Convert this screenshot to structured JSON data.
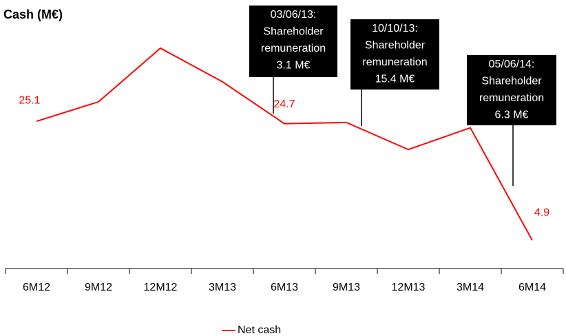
{
  "chart_data": {
    "type": "line",
    "title": "Cash (M€)",
    "categories": [
      "6M12",
      "9M12",
      "12M12",
      "3M13",
      "6M13",
      "9M13",
      "12M13",
      "3M14",
      "6M14"
    ],
    "series": [
      {
        "name": "Net cash",
        "color": "#ff0000",
        "values": [
          25.1,
          28.4,
          37.5,
          31.8,
          24.7,
          24.9,
          20.3,
          24.0,
          4.9
        ],
        "value_labels": [
          "25.1",
          null,
          null,
          null,
          "24.7",
          null,
          null,
          null,
          "4.9"
        ]
      }
    ],
    "ylim": [
      0,
      40
    ],
    "annotations": [
      {
        "lines": [
          "03/06/13:",
          "Shareholder",
          "remuneration",
          "3.1 M€"
        ]
      },
      {
        "lines": [
          "10/10/13:",
          "Shareholder",
          "remuneration",
          "15.4 M€"
        ]
      },
      {
        "lines": [
          "05/06/14:",
          "Shareholder",
          "remuneration",
          "6.3 M€"
        ]
      }
    ]
  }
}
